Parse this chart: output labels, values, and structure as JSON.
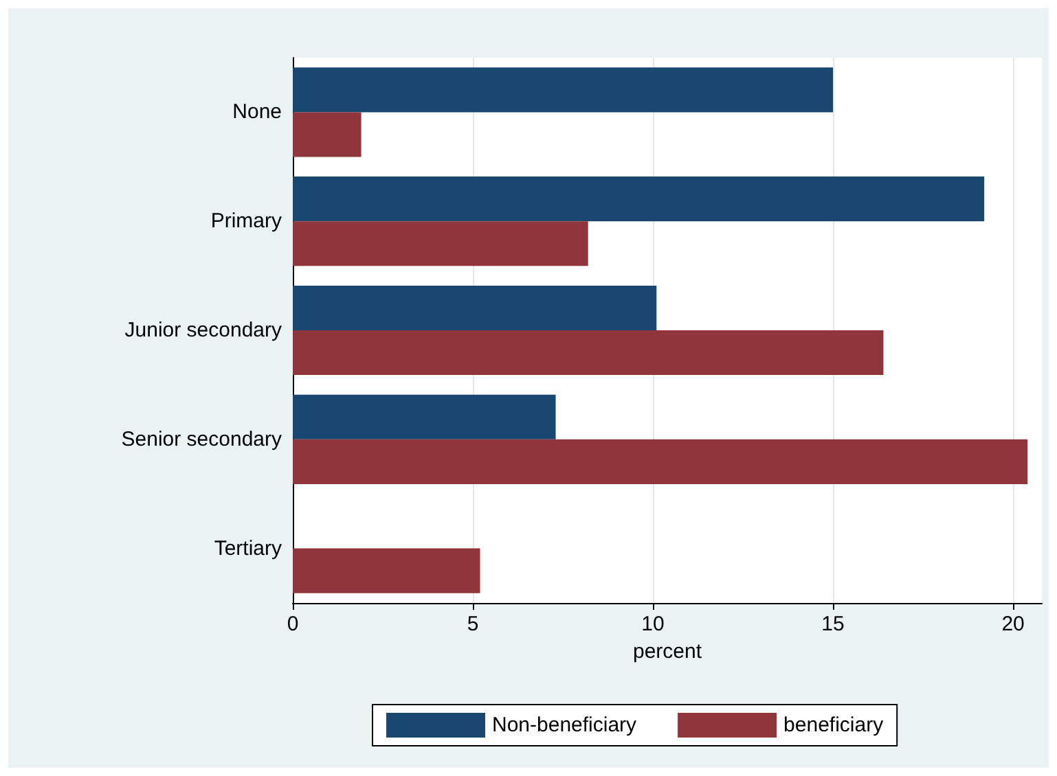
{
  "chart_data": {
    "type": "bar",
    "orientation": "horizontal",
    "categories": [
      "None",
      "Primary",
      "Junior secondary",
      "Senior secondary",
      "Tertiary"
    ],
    "series": [
      {
        "name": "Non-beneficiary",
        "color": "#1a476f",
        "values": [
          15.0,
          19.2,
          10.1,
          7.3,
          0
        ]
      },
      {
        "name": "beneficiary",
        "color": "#90353b",
        "values": [
          1.9,
          8.2,
          16.4,
          20.4,
          5.2
        ]
      }
    ],
    "xlabel": "percent",
    "xlim": [
      0,
      20.8
    ],
    "xticks": [
      0,
      5,
      10,
      15,
      20
    ],
    "grid": "x",
    "legend": "bottom"
  }
}
